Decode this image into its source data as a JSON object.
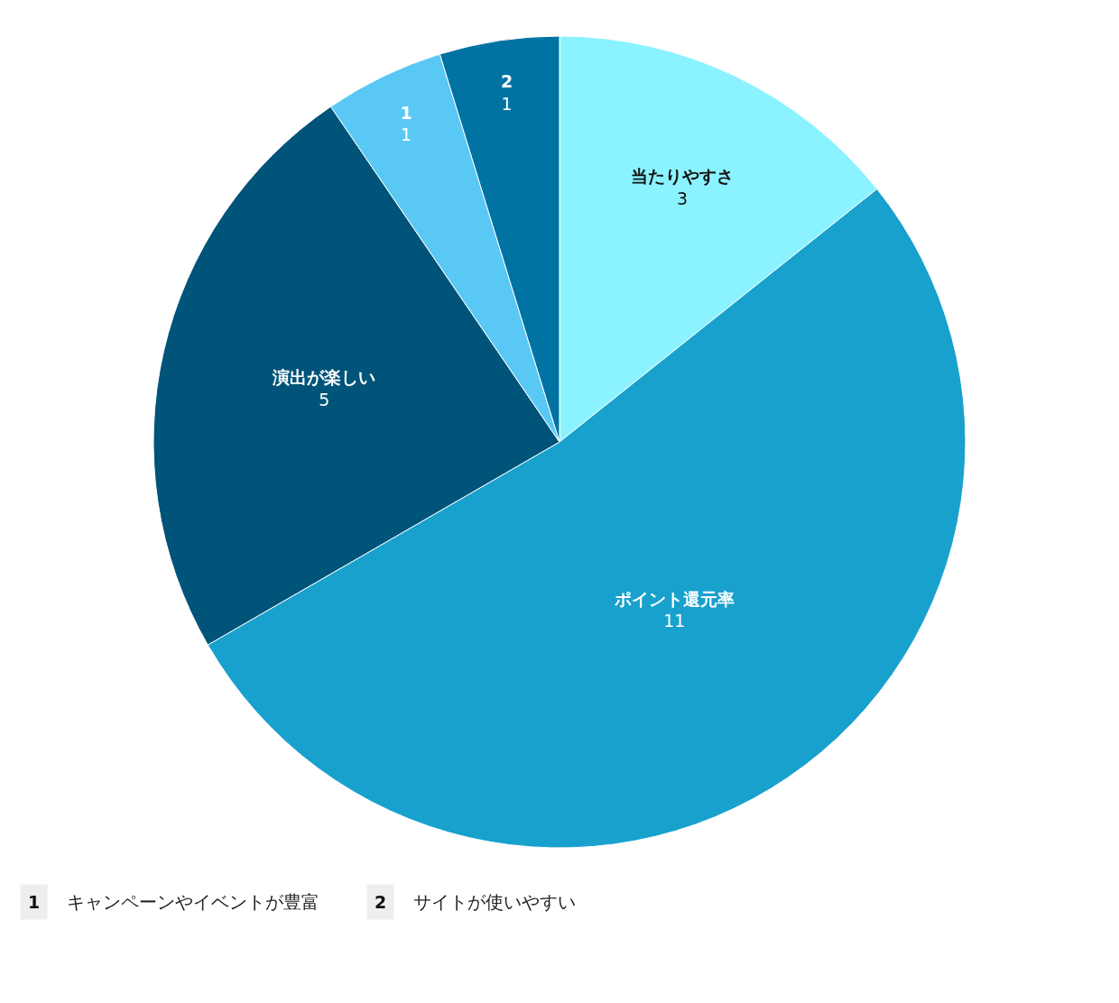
{
  "chart_data": {
    "type": "pie",
    "categories": [
      "当たりやすさ",
      "ポイント還元率",
      "演出が楽しい",
      "1",
      "2"
    ],
    "values": [
      3,
      11,
      5,
      1,
      1
    ],
    "colors": [
      "#8af3ff",
      "#18a1cd",
      "#005479",
      "#5ac8f5",
      "#0073a3"
    ],
    "data_labels": true,
    "legend": false,
    "annotations": [
      "1 キャンペーンやイベントが豊富",
      "2 サイトが使いやすい"
    ]
  }
}
